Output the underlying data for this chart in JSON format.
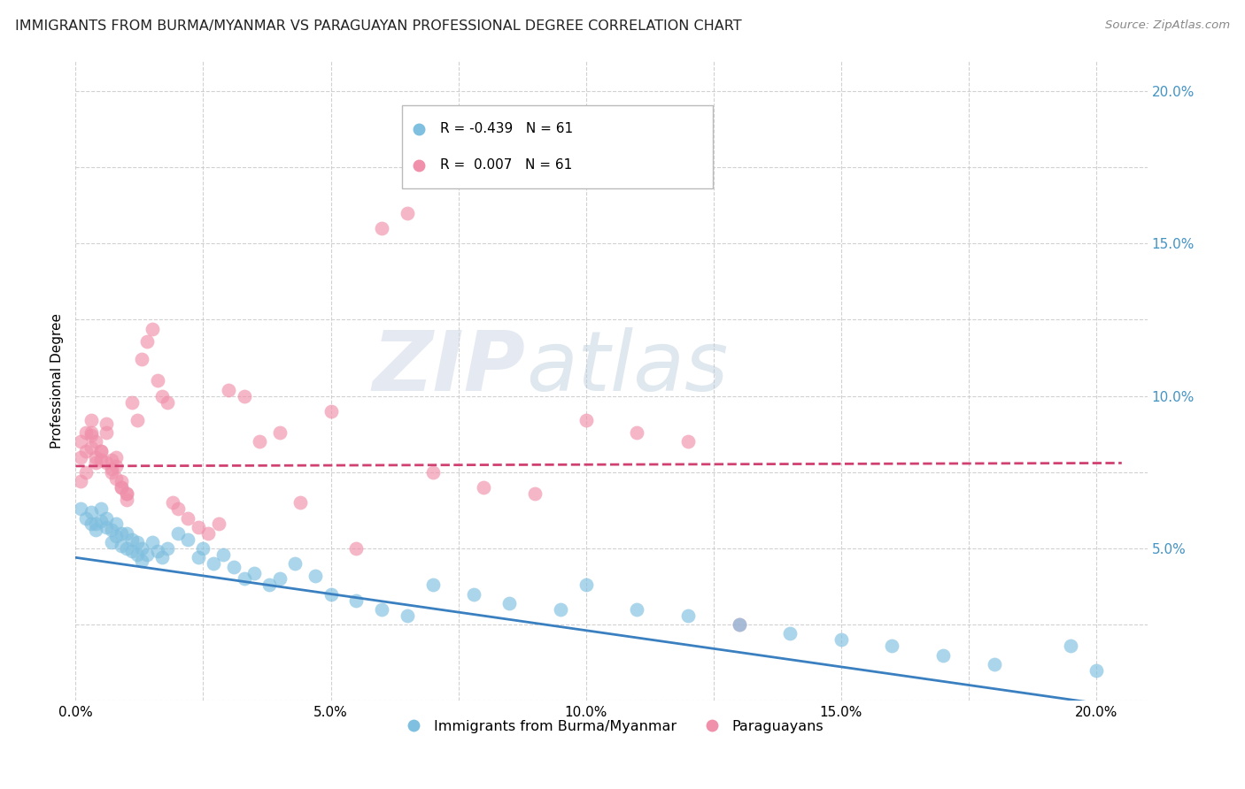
{
  "title": "IMMIGRANTS FROM BURMA/MYANMAR VS PARAGUAYAN PROFESSIONAL DEGREE CORRELATION CHART",
  "source": "Source: ZipAtlas.com",
  "ylabel": "Professional Degree",
  "legend_label1": "Immigrants from Burma/Myanmar",
  "legend_label2": "Paraguayans",
  "R1": -0.439,
  "N1": 61,
  "R2": 0.007,
  "N2": 61,
  "color_blue": "#7fbfdf",
  "color_pink": "#f090aa",
  "color_blue_line": "#3a80c0",
  "color_pink_line": "#d04070",
  "background_color": "#ffffff",
  "grid_color": "#cccccc",
  "watermark_zip": "ZIP",
  "watermark_atlas": "atlas",
  "xlim": [
    0.0,
    0.21
  ],
  "ylim": [
    0.0,
    0.21
  ],
  "blue_scatter_x": [
    0.001,
    0.002,
    0.003,
    0.003,
    0.004,
    0.004,
    0.005,
    0.005,
    0.006,
    0.006,
    0.007,
    0.007,
    0.008,
    0.008,
    0.009,
    0.009,
    0.01,
    0.01,
    0.011,
    0.011,
    0.012,
    0.012,
    0.013,
    0.013,
    0.014,
    0.015,
    0.016,
    0.017,
    0.018,
    0.02,
    0.022,
    0.024,
    0.025,
    0.027,
    0.029,
    0.031,
    0.033,
    0.035,
    0.038,
    0.04,
    0.043,
    0.047,
    0.05,
    0.055,
    0.06,
    0.065,
    0.07,
    0.078,
    0.085,
    0.095,
    0.1,
    0.11,
    0.12,
    0.13,
    0.14,
    0.15,
    0.16,
    0.17,
    0.18,
    0.195,
    0.2
  ],
  "blue_scatter_y": [
    0.063,
    0.06,
    0.062,
    0.058,
    0.058,
    0.056,
    0.063,
    0.059,
    0.057,
    0.06,
    0.056,
    0.052,
    0.058,
    0.054,
    0.055,
    0.051,
    0.055,
    0.05,
    0.053,
    0.049,
    0.052,
    0.048,
    0.05,
    0.046,
    0.048,
    0.052,
    0.049,
    0.047,
    0.05,
    0.055,
    0.053,
    0.047,
    0.05,
    0.045,
    0.048,
    0.044,
    0.04,
    0.042,
    0.038,
    0.04,
    0.045,
    0.041,
    0.035,
    0.033,
    0.03,
    0.028,
    0.038,
    0.035,
    0.032,
    0.03,
    0.038,
    0.03,
    0.028,
    0.025,
    0.022,
    0.02,
    0.018,
    0.015,
    0.012,
    0.018,
    0.01
  ],
  "pink_scatter_x": [
    0.001,
    0.001,
    0.002,
    0.002,
    0.003,
    0.003,
    0.004,
    0.004,
    0.005,
    0.005,
    0.006,
    0.006,
    0.007,
    0.007,
    0.008,
    0.008,
    0.009,
    0.009,
    0.01,
    0.01,
    0.011,
    0.012,
    0.013,
    0.014,
    0.015,
    0.016,
    0.017,
    0.018,
    0.019,
    0.02,
    0.022,
    0.024,
    0.026,
    0.028,
    0.03,
    0.033,
    0.036,
    0.04,
    0.044,
    0.05,
    0.055,
    0.06,
    0.065,
    0.07,
    0.08,
    0.09,
    0.1,
    0.11,
    0.12,
    0.13,
    0.001,
    0.002,
    0.003,
    0.003,
    0.004,
    0.005,
    0.006,
    0.007,
    0.008,
    0.009,
    0.01
  ],
  "pink_scatter_y": [
    0.085,
    0.08,
    0.088,
    0.082,
    0.087,
    0.083,
    0.08,
    0.078,
    0.082,
    0.079,
    0.091,
    0.088,
    0.079,
    0.075,
    0.08,
    0.077,
    0.072,
    0.07,
    0.068,
    0.066,
    0.098,
    0.092,
    0.112,
    0.118,
    0.122,
    0.105,
    0.1,
    0.098,
    0.065,
    0.063,
    0.06,
    0.057,
    0.055,
    0.058,
    0.102,
    0.1,
    0.085,
    0.088,
    0.065,
    0.095,
    0.05,
    0.155,
    0.16,
    0.075,
    0.07,
    0.068,
    0.092,
    0.088,
    0.085,
    0.025,
    0.072,
    0.075,
    0.092,
    0.088,
    0.085,
    0.082,
    0.078,
    0.076,
    0.073,
    0.07,
    0.068
  ],
  "blue_line_x": [
    0.0,
    0.205
  ],
  "blue_line_y": [
    0.047,
    -0.002
  ],
  "pink_line_x": [
    0.0,
    0.205
  ],
  "pink_line_y": [
    0.077,
    0.078
  ]
}
